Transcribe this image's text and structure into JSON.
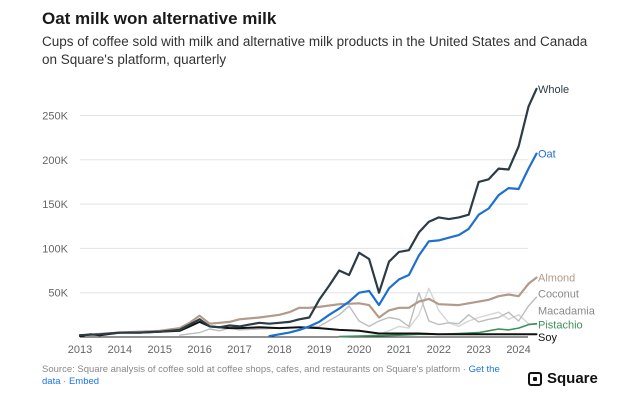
{
  "title": "Oat milk won alternative milk",
  "subtitle": "Cups of coffee sold with milk and alternative milk products in the United States and Canada on Square's platform, quarterly",
  "footer": {
    "source": "Source: Square analysis of coffee sold at coffee shops, cafes, and restaurants on Square's platform",
    "sep1": " · ",
    "get_data": "Get the data",
    "sep2": " · ",
    "embed": "Embed"
  },
  "brand": {
    "name": "Square",
    "icon": "square-logo-icon"
  },
  "chart_data": {
    "type": "line",
    "title": "Oat milk won alternative milk",
    "xlabel": "",
    "ylabel": "",
    "xlim": [
      2013.0,
      2024.6
    ],
    "ylim": [
      0,
      290000
    ],
    "yticks": [
      50000,
      100000,
      150000,
      200000,
      250000
    ],
    "ytick_labels": [
      "50K",
      "100K",
      "150K",
      "200K",
      "250K"
    ],
    "xticks": [
      2013,
      2014,
      2015,
      2016,
      2017,
      2018,
      2019,
      2020,
      2021,
      2022,
      2023,
      2024
    ],
    "xtick_labels": [
      "2013",
      "2014",
      "2015",
      "2016",
      "2017",
      "2018",
      "2019",
      "2020",
      "2021",
      "2022",
      "2023",
      "2024"
    ],
    "grid": "horizontal",
    "series": [
      {
        "name": "Whole",
        "color": "#2b3c45",
        "width": 2.2,
        "label_offset": 0,
        "points": [
          [
            2013,
            2000
          ],
          [
            2013.5,
            3000
          ],
          [
            2014,
            5000
          ],
          [
            2014.5,
            5000
          ],
          [
            2015,
            6000
          ],
          [
            2015.5,
            8000
          ],
          [
            2016,
            20000
          ],
          [
            2016.25,
            12000
          ],
          [
            2016.5,
            11000
          ],
          [
            2016.75,
            13000
          ],
          [
            2017,
            12000
          ],
          [
            2017.25,
            14000
          ],
          [
            2017.5,
            16000
          ],
          [
            2017.75,
            15000
          ],
          [
            2018,
            16000
          ],
          [
            2018.25,
            17000
          ],
          [
            2018.5,
            20000
          ],
          [
            2018.75,
            22000
          ],
          [
            2019,
            42000
          ],
          [
            2019.25,
            58000
          ],
          [
            2019.5,
            75000
          ],
          [
            2019.75,
            70000
          ],
          [
            2020,
            95000
          ],
          [
            2020.25,
            88000
          ],
          [
            2020.5,
            50000
          ],
          [
            2020.75,
            85000
          ],
          [
            2021,
            96000
          ],
          [
            2021.25,
            98000
          ],
          [
            2021.5,
            118000
          ],
          [
            2021.75,
            130000
          ],
          [
            2022,
            135000
          ],
          [
            2022.25,
            133000
          ],
          [
            2022.5,
            135000
          ],
          [
            2022.75,
            138000
          ],
          [
            2023,
            175000
          ],
          [
            2023.25,
            178000
          ],
          [
            2023.5,
            190000
          ],
          [
            2023.75,
            189000
          ],
          [
            2024,
            215000
          ],
          [
            2024.25,
            260000
          ],
          [
            2024.45,
            280000
          ]
        ]
      },
      {
        "name": "Oat",
        "color": "#1f6fd1",
        "width": 2.2,
        "label_offset": 0,
        "points": [
          [
            2017.75,
            1000
          ],
          [
            2018,
            3000
          ],
          [
            2018.25,
            5000
          ],
          [
            2018.5,
            8000
          ],
          [
            2018.75,
            12000
          ],
          [
            2019,
            17000
          ],
          [
            2019.25,
            25000
          ],
          [
            2019.5,
            32000
          ],
          [
            2019.75,
            40000
          ],
          [
            2020,
            50000
          ],
          [
            2020.25,
            52000
          ],
          [
            2020.5,
            36000
          ],
          [
            2020.75,
            55000
          ],
          [
            2021,
            65000
          ],
          [
            2021.25,
            70000
          ],
          [
            2021.5,
            92000
          ],
          [
            2021.75,
            108000
          ],
          [
            2022,
            109000
          ],
          [
            2022.25,
            112000
          ],
          [
            2022.5,
            115000
          ],
          [
            2022.75,
            122000
          ],
          [
            2023,
            138000
          ],
          [
            2023.25,
            145000
          ],
          [
            2023.5,
            160000
          ],
          [
            2023.75,
            168000
          ],
          [
            2024,
            167000
          ],
          [
            2024.25,
            190000
          ],
          [
            2024.45,
            207000
          ]
        ]
      },
      {
        "name": "Almond",
        "color": "#b39a8a",
        "width": 2.2,
        "label_offset": 0,
        "points": [
          [
            2013,
            2000
          ],
          [
            2014,
            5000
          ],
          [
            2015,
            7000
          ],
          [
            2015.5,
            10000
          ],
          [
            2015.75,
            16000
          ],
          [
            2016,
            24000
          ],
          [
            2016.25,
            15000
          ],
          [
            2016.5,
            16000
          ],
          [
            2016.75,
            17000
          ],
          [
            2017,
            20000
          ],
          [
            2017.5,
            22000
          ],
          [
            2018,
            25000
          ],
          [
            2018.25,
            28000
          ],
          [
            2018.5,
            33000
          ],
          [
            2018.75,
            33000
          ],
          [
            2019,
            34000
          ],
          [
            2019.5,
            37000
          ],
          [
            2020,
            38000
          ],
          [
            2020.25,
            36000
          ],
          [
            2020.5,
            22000
          ],
          [
            2020.75,
            30000
          ],
          [
            2021,
            33000
          ],
          [
            2021.25,
            33000
          ],
          [
            2021.5,
            40000
          ],
          [
            2021.75,
            43000
          ],
          [
            2022,
            37000
          ],
          [
            2022.5,
            36000
          ],
          [
            2022.75,
            38000
          ],
          [
            2023,
            40000
          ],
          [
            2023.25,
            42000
          ],
          [
            2023.5,
            46000
          ],
          [
            2023.75,
            48000
          ],
          [
            2024,
            46000
          ],
          [
            2024.25,
            60000
          ],
          [
            2024.45,
            67000
          ]
        ]
      },
      {
        "name": "Coconut",
        "color": "#bdbdbd",
        "width": 1.4,
        "label_offset": 0,
        "points": [
          [
            2015.5,
            2000
          ],
          [
            2016,
            5000
          ],
          [
            2016.25,
            9000
          ],
          [
            2016.5,
            7000
          ],
          [
            2016.75,
            10000
          ],
          [
            2017,
            8000
          ],
          [
            2017.5,
            9000
          ],
          [
            2018,
            10000
          ],
          [
            2018.5,
            11000
          ],
          [
            2019,
            12000
          ],
          [
            2019.5,
            25000
          ],
          [
            2019.75,
            35000
          ],
          [
            2020,
            18000
          ],
          [
            2020.25,
            12000
          ],
          [
            2020.5,
            18000
          ],
          [
            2020.75,
            22000
          ],
          [
            2021,
            20000
          ],
          [
            2021.25,
            12000
          ],
          [
            2021.5,
            50000
          ],
          [
            2021.75,
            18000
          ],
          [
            2022,
            14000
          ],
          [
            2022.25,
            16000
          ],
          [
            2022.5,
            15000
          ],
          [
            2022.75,
            25000
          ],
          [
            2023,
            17000
          ],
          [
            2023.25,
            20000
          ],
          [
            2023.5,
            22000
          ],
          [
            2023.75,
            28000
          ],
          [
            2024,
            18000
          ],
          [
            2024.25,
            35000
          ],
          [
            2024.45,
            45000
          ]
        ]
      },
      {
        "name": "Macadamia",
        "color": "#d6d6d6",
        "width": 1.4,
        "label_offset": 0,
        "points": [
          [
            2019.5,
            500
          ],
          [
            2020,
            1000
          ],
          [
            2020.5,
            3000
          ],
          [
            2020.75,
            7000
          ],
          [
            2021,
            12000
          ],
          [
            2021.25,
            10000
          ],
          [
            2021.5,
            25000
          ],
          [
            2021.75,
            55000
          ],
          [
            2022,
            30000
          ],
          [
            2022.25,
            16000
          ],
          [
            2022.5,
            12000
          ],
          [
            2022.75,
            18000
          ],
          [
            2023,
            22000
          ],
          [
            2023.25,
            25000
          ],
          [
            2023.5,
            28000
          ],
          [
            2023.75,
            20000
          ],
          [
            2024,
            25000
          ],
          [
            2024.25,
            15000
          ],
          [
            2024.45,
            14000
          ]
        ]
      },
      {
        "name": "Pistachio",
        "color": "#3f8f5a",
        "width": 1.6,
        "label_offset": 0,
        "points": [
          [
            2019.5,
            500
          ],
          [
            2020,
            1000
          ],
          [
            2020.5,
            1500
          ],
          [
            2021,
            2000
          ],
          [
            2021.5,
            3000
          ],
          [
            2022,
            3000
          ],
          [
            2022.5,
            4000
          ],
          [
            2023,
            5000
          ],
          [
            2023.25,
            7000
          ],
          [
            2023.5,
            9000
          ],
          [
            2023.75,
            8000
          ],
          [
            2024,
            10000
          ],
          [
            2024.25,
            14000
          ],
          [
            2024.45,
            15000
          ]
        ]
      },
      {
        "name": "Soy",
        "color": "#111111",
        "width": 2.0,
        "label_offset": 0,
        "points": [
          [
            2013,
            1000
          ],
          [
            2013.25,
            3000
          ],
          [
            2013.5,
            2000
          ],
          [
            2014,
            5000
          ],
          [
            2014.5,
            5000
          ],
          [
            2015,
            6000
          ],
          [
            2015.5,
            7000
          ],
          [
            2015.75,
            12000
          ],
          [
            2016,
            17000
          ],
          [
            2016.25,
            12000
          ],
          [
            2016.5,
            11000
          ],
          [
            2016.75,
            10000
          ],
          [
            2017,
            10000
          ],
          [
            2017.5,
            11000
          ],
          [
            2018,
            10000
          ],
          [
            2018.5,
            11000
          ],
          [
            2019,
            10000
          ],
          [
            2019.5,
            8000
          ],
          [
            2020,
            7000
          ],
          [
            2020.5,
            4000
          ],
          [
            2021,
            4000
          ],
          [
            2021.5,
            4000
          ],
          [
            2022,
            3000
          ],
          [
            2022.5,
            3000
          ],
          [
            2023,
            3000
          ],
          [
            2023.5,
            3000
          ],
          [
            2024,
            3000
          ],
          [
            2024.45,
            3000
          ]
        ]
      }
    ],
    "label_positions": {
      "Whole": 280000,
      "Oat": 207000,
      "Almond": 67000,
      "Coconut": 49000,
      "Macadamia": 30000,
      "Pistachio": 14000,
      "Soy": 0
    }
  }
}
